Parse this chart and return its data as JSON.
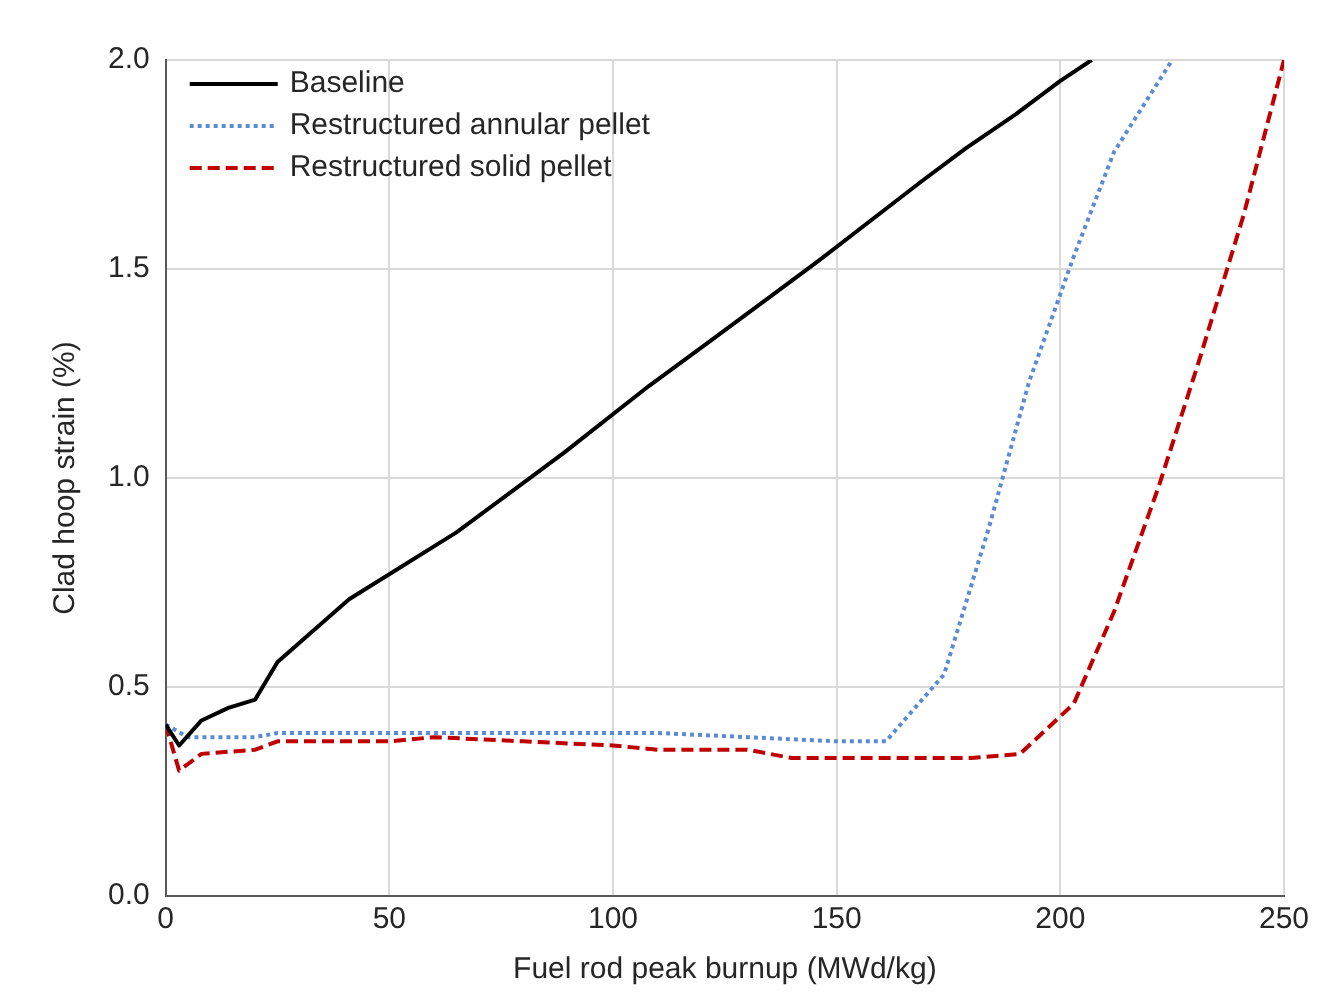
{
  "chart_data": {
    "type": "line",
    "xlabel": "Fuel rod peak burnup (MWd/kg)",
    "ylabel": "Clad hoop strain (%)",
    "xlim": [
      0,
      250
    ],
    "xticks": [
      0,
      50,
      100,
      150,
      200,
      250
    ],
    "ylim": [
      0,
      2.0
    ],
    "yticks": [
      {
        "value": 0,
        "label": "0.0"
      },
      {
        "value": 0.5,
        "label": "0.5"
      },
      {
        "value": 1,
        "label": "1.0"
      },
      {
        "value": 1.5,
        "label": "1.5"
      },
      {
        "value": 2,
        "label": "2.0"
      }
    ],
    "grid": true,
    "legend": "top left",
    "marker": "none",
    "series": [
      {
        "name": "Baseline",
        "color": "#000000",
        "line_style": "solid",
        "x": [
          0,
          3,
          8,
          14,
          20,
          25,
          41,
          65,
          89,
          108,
          122,
          146,
          169,
          179,
          190,
          200,
          207
        ],
        "values": [
          0.41,
          0.36,
          0.42,
          0.45,
          0.47,
          0.56,
          0.71,
          0.87,
          1.06,
          1.22,
          1.33,
          1.52,
          1.71,
          1.79,
          1.87,
          1.95,
          2.0
        ]
      },
      {
        "name": "Restructured annular pellet",
        "color": "#5b8bd0",
        "line_style": "dotted",
        "x": [
          0,
          5,
          20,
          25,
          60,
          100,
          110,
          130,
          150,
          161,
          174,
          184,
          193,
          203,
          212,
          225
        ],
        "values": [
          0.41,
          0.38,
          0.38,
          0.39,
          0.39,
          0.39,
          0.39,
          0.38,
          0.37,
          0.37,
          0.53,
          0.88,
          1.23,
          1.53,
          1.78,
          2.0
        ]
      },
      {
        "name": "Restructured solid pellet",
        "color": "#c00000",
        "line_style": "dashed",
        "x": [
          0,
          3,
          8,
          20,
          25,
          50,
          60,
          80,
          100,
          110,
          130,
          140,
          180,
          191,
          203,
          212,
          222,
          231,
          241,
          250
        ],
        "values": [
          0.41,
          0.3,
          0.34,
          0.35,
          0.37,
          0.37,
          0.38,
          0.37,
          0.36,
          0.35,
          0.35,
          0.33,
          0.33,
          0.34,
          0.46,
          0.68,
          0.98,
          1.28,
          1.63,
          2.0
        ]
      }
    ]
  }
}
